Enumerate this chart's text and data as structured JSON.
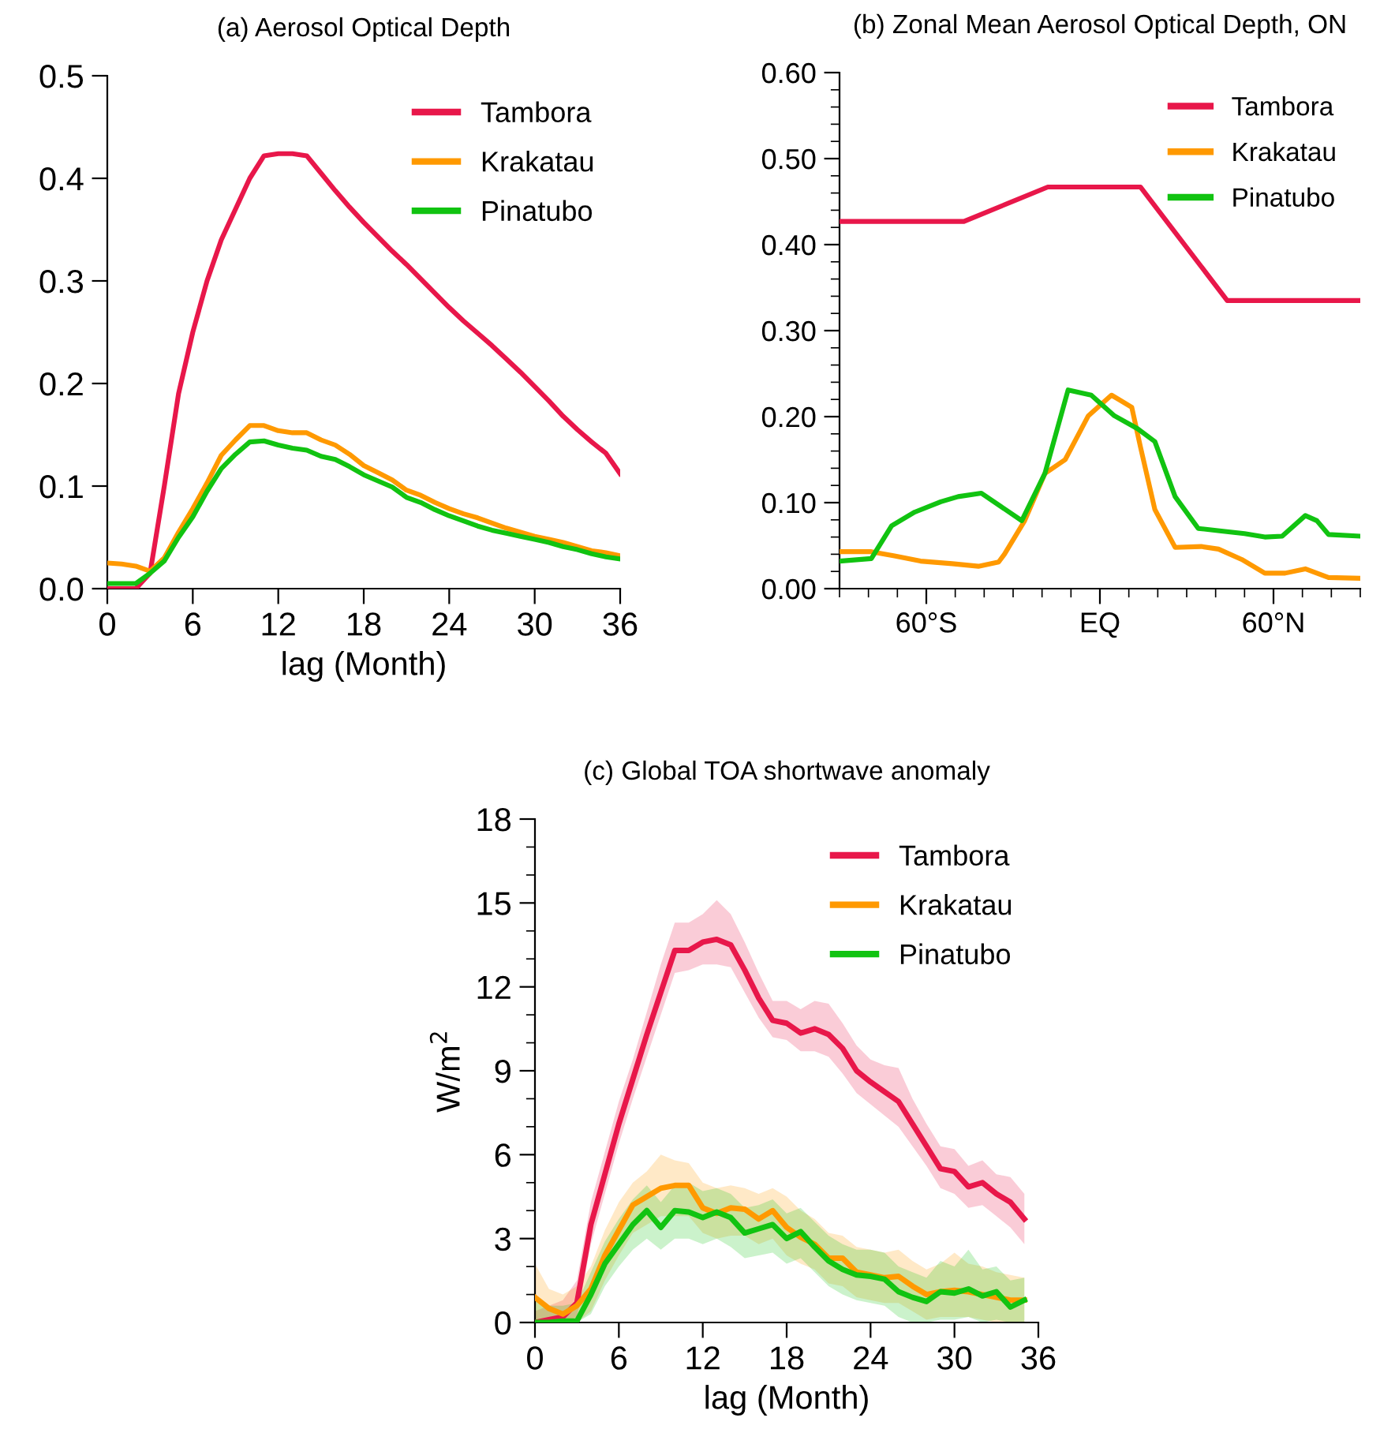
{
  "chart_data": [
    {
      "type": "line",
      "title": "(a) Aerosol Optical Depth",
      "xlabel": "lag (Month)",
      "x": [
        0,
        1,
        2,
        3,
        4,
        5,
        6,
        7,
        8,
        9,
        10,
        11,
        12,
        13,
        14,
        15,
        16,
        17,
        18,
        19,
        20,
        21,
        22,
        23,
        24,
        25,
        26,
        27,
        28,
        29,
        30,
        31,
        32,
        33,
        34,
        35,
        36
      ],
      "series": [
        {
          "name": "Tambora",
          "color": "#e8174a",
          "values": [
            0,
            0,
            0,
            0.015,
            0.1,
            0.19,
            0.25,
            0.3,
            0.34,
            0.37,
            0.4,
            0.422,
            0.424,
            0.424,
            0.422,
            0.405,
            0.388,
            0.372,
            0.357,
            0.343,
            0.329,
            0.316,
            0.302,
            0.288,
            0.274,
            0.261,
            0.249,
            0.237,
            0.224,
            0.211,
            0.197,
            0.183,
            0.168,
            0.155,
            0.143,
            0.132,
            0.112
          ]
        },
        {
          "name": "Krakatau",
          "color": "#ff9900",
          "values": [
            0.025,
            0.024,
            0.022,
            0.017,
            0.03,
            0.055,
            0.078,
            0.103,
            0.13,
            0.145,
            0.159,
            0.159,
            0.154,
            0.152,
            0.152,
            0.145,
            0.14,
            0.131,
            0.12,
            0.113,
            0.106,
            0.096,
            0.091,
            0.084,
            0.078,
            0.073,
            0.069,
            0.064,
            0.059,
            0.055,
            0.051,
            0.048,
            0.045,
            0.041,
            0.037,
            0.035,
            0.032
          ]
        },
        {
          "name": "Pinatubo",
          "color": "#11c311",
          "values": [
            0.005,
            0.005,
            0.005,
            0.015,
            0.027,
            0.05,
            0.07,
            0.095,
            0.117,
            0.131,
            0.143,
            0.144,
            0.14,
            0.137,
            0.135,
            0.129,
            0.126,
            0.119,
            0.111,
            0.105,
            0.099,
            0.089,
            0.084,
            0.077,
            0.071,
            0.066,
            0.061,
            0.057,
            0.054,
            0.051,
            0.048,
            0.045,
            0.041,
            0.038,
            0.034,
            0.031,
            0.029
          ]
        }
      ],
      "xlim": [
        0,
        36
      ],
      "xticks": [
        0,
        6,
        12,
        18,
        24,
        30,
        36
      ],
      "ylim": [
        0,
        0.5
      ],
      "yticks": [
        {
          "value": 0,
          "label": "0.0"
        },
        0.1,
        0.2,
        0.3,
        0.4,
        0.5
      ],
      "grid": false,
      "legend": "top right"
    },
    {
      "type": "line",
      "title": "(b) Zonal Mean Aerosol Optical Depth, ON",
      "series": [
        {
          "name": "Tambora",
          "color": "#e8174a",
          "x": [
            -90,
            -47,
            -18,
            14,
            44,
            90
          ],
          "values": [
            0.427,
            0.427,
            0.467,
            0.467,
            0.335,
            0.335
          ]
        },
        {
          "name": "Krakatau",
          "color": "#ff9900",
          "x": [
            -90,
            -79,
            -71,
            -62,
            -51,
            -42,
            -35,
            -33,
            -26,
            -19,
            -12,
            -4,
            4,
            11,
            14,
            19,
            26,
            35,
            41,
            49,
            57,
            64,
            71,
            79,
            90
          ],
          "values": [
            0.043,
            0.043,
            0.038,
            0.032,
            0.029,
            0.026,
            0.031,
            0.04,
            0.079,
            0.134,
            0.15,
            0.201,
            0.225,
            0.211,
            0.165,
            0.092,
            0.048,
            0.049,
            0.046,
            0.034,
            0.018,
            0.018,
            0.023,
            0.013,
            0.012
          ]
        },
        {
          "name": "Pinatubo",
          "color": "#11c311",
          "x": [
            -90,
            -79,
            -72,
            -64,
            -55,
            -49,
            -41,
            -27,
            -19,
            -11,
            -3,
            5,
            13,
            19,
            26,
            34,
            42,
            50,
            57,
            63,
            71,
            75,
            79,
            90
          ],
          "values": [
            0.032,
            0.035,
            0.073,
            0.089,
            0.101,
            0.107,
            0.111,
            0.079,
            0.134,
            0.231,
            0.225,
            0.201,
            0.186,
            0.171,
            0.107,
            0.07,
            0.067,
            0.064,
            0.06,
            0.061,
            0.085,
            0.079,
            0.063,
            0.061
          ]
        }
      ],
      "xlim": [
        -90,
        90
      ],
      "xticks": [
        {
          "value": -90,
          "label": null
        },
        {
          "value": -80,
          "label": null
        },
        {
          "value": -70,
          "label": null
        },
        {
          "value": -60,
          "label": "60°S"
        },
        {
          "value": -50,
          "label": null
        },
        {
          "value": -40,
          "label": null
        },
        {
          "value": -30,
          "label": null
        },
        {
          "value": -20,
          "label": null
        },
        {
          "value": -10,
          "label": null
        },
        {
          "value": 0,
          "label": "EQ"
        },
        {
          "value": 10,
          "label": null
        },
        {
          "value": 20,
          "label": null
        },
        {
          "value": 30,
          "label": null
        },
        {
          "value": 40,
          "label": null
        },
        {
          "value": 50,
          "label": null
        },
        {
          "value": 60,
          "label": "60°N"
        },
        {
          "value": 70,
          "label": null
        },
        {
          "value": 80,
          "label": null
        },
        {
          "value": 90,
          "label": null
        }
      ],
      "ylim": [
        0,
        0.6
      ],
      "yticks": [
        {
          "value": 0,
          "label": "0.00"
        },
        {
          "value": 0.02,
          "label": null
        },
        {
          "value": 0.04,
          "label": null
        },
        {
          "value": 0.06,
          "label": null
        },
        {
          "value": 0.08,
          "label": null
        },
        {
          "value": 0.1,
          "label": "0.10"
        },
        {
          "value": 0.12,
          "label": null
        },
        {
          "value": 0.14,
          "label": null
        },
        {
          "value": 0.16,
          "label": null
        },
        {
          "value": 0.18,
          "label": null
        },
        {
          "value": 0.2,
          "label": "0.20"
        },
        {
          "value": 0.22,
          "label": null
        },
        {
          "value": 0.24,
          "label": null
        },
        {
          "value": 0.26,
          "label": null
        },
        {
          "value": 0.28,
          "label": null
        },
        {
          "value": 0.3,
          "label": "0.30"
        },
        {
          "value": 0.32,
          "label": null
        },
        {
          "value": 0.34,
          "label": null
        },
        {
          "value": 0.36,
          "label": null
        },
        {
          "value": 0.38,
          "label": null
        },
        {
          "value": 0.4,
          "label": "0.40"
        },
        {
          "value": 0.42,
          "label": null
        },
        {
          "value": 0.44,
          "label": null
        },
        {
          "value": 0.46,
          "label": null
        },
        {
          "value": 0.48,
          "label": null
        },
        {
          "value": 0.5,
          "label": "0.50"
        },
        {
          "value": 0.52,
          "label": null
        },
        {
          "value": 0.54,
          "label": null
        },
        {
          "value": 0.56,
          "label": null
        },
        {
          "value": 0.58,
          "label": null
        },
        {
          "value": 0.6,
          "label": "0.60"
        }
      ],
      "grid": false,
      "legend": "top right"
    },
    {
      "type": "line",
      "title": "(c) Global TOA shortwave anomaly",
      "xlabel": "lag (Month)",
      "ylabel": "W/m$^{2}$",
      "x": [
        0,
        1,
        2,
        3,
        4,
        5,
        6,
        7,
        8,
        9,
        10,
        11,
        12,
        13,
        14,
        15,
        16,
        17,
        18,
        19,
        20,
        21,
        22,
        23,
        24,
        25,
        26,
        27,
        28,
        29,
        30,
        31,
        32,
        33,
        34,
        35
      ],
      "series": [
        {
          "name": "Tambora",
          "color": "#e8174a",
          "values": [
            0,
            0.1,
            0.2,
            0.7,
            3.5,
            5.3,
            7.1,
            8.7,
            10.3,
            11.8,
            13.3,
            13.3,
            13.6,
            13.7,
            13.5,
            12.6,
            11.6,
            10.8,
            10.7,
            10.35,
            10.5,
            10.3,
            9.8,
            9.0,
            8.6,
            8.25,
            7.9,
            7.1,
            6.3,
            5.5,
            5.4,
            4.85,
            5.0,
            4.6,
            4.3,
            3.7
          ],
          "lower": [
            0,
            0,
            0,
            0.2,
            2.8,
            4.6,
            6.4,
            8.0,
            9.5,
            11.0,
            12.5,
            12.6,
            12.8,
            12.8,
            12.7,
            11.8,
            10.9,
            10.2,
            10.1,
            9.7,
            9.7,
            9.5,
            8.9,
            8.2,
            7.8,
            7.4,
            7.0,
            6.3,
            5.6,
            4.8,
            4.6,
            4.1,
            4.2,
            3.8,
            3.4,
            2.8
          ],
          "upper": [
            0.4,
            0.6,
            0.8,
            1.5,
            4.3,
            6.1,
            7.9,
            9.4,
            11.1,
            12.8,
            14.3,
            14.3,
            14.6,
            15.1,
            14.6,
            13.6,
            12.5,
            11.5,
            11.5,
            11.2,
            11.5,
            11.4,
            10.7,
            9.9,
            9.4,
            9.2,
            9.1,
            8.0,
            7.1,
            6.3,
            6.2,
            5.6,
            5.8,
            5.3,
            5.2,
            4.6
          ]
        },
        {
          "name": "Krakatau",
          "color": "#ff9900",
          "values": [
            0.9,
            0.5,
            0.3,
            0.6,
            1.2,
            2.4,
            3.3,
            4.2,
            4.5,
            4.8,
            4.9,
            4.9,
            4.1,
            3.9,
            4.1,
            4.05,
            3.7,
            4.0,
            3.4,
            3.05,
            2.8,
            2.3,
            2.3,
            1.8,
            1.7,
            1.6,
            1.65,
            1.3,
            1.0,
            1.1,
            1.15,
            1.1,
            1.0,
            0.9,
            0.8,
            0.8
          ],
          "lower": [
            0,
            0,
            0,
            0,
            0.4,
            1.5,
            2.4,
            3.2,
            3.5,
            3.8,
            3.8,
            3.8,
            3.2,
            3.0,
            3.1,
            3.1,
            2.8,
            3.0,
            2.4,
            2.1,
            1.9,
            1.4,
            1.3,
            0.9,
            0.8,
            0.7,
            0.7,
            0.4,
            0.1,
            0.2,
            0.2,
            0.2,
            0.1,
            0,
            0,
            0
          ],
          "upper": [
            2.1,
            1.2,
            1.0,
            1.3,
            2.0,
            3.3,
            4.3,
            5.0,
            5.4,
            6.0,
            5.8,
            5.7,
            5.0,
            4.8,
            4.9,
            4.8,
            4.6,
            4.8,
            4.5,
            4.0,
            3.7,
            3.2,
            3.1,
            2.7,
            2.6,
            2.5,
            2.6,
            2.2,
            1.9,
            2.1,
            2.5,
            2.1,
            2.0,
            1.8,
            1.7,
            1.6
          ]
        },
        {
          "name": "Pinatubo",
          "color": "#11c311",
          "values": [
            0,
            0,
            0.05,
            0.05,
            1.0,
            2.1,
            2.8,
            3.5,
            4.0,
            3.4,
            4.0,
            3.95,
            3.75,
            3.95,
            3.75,
            3.2,
            3.35,
            3.5,
            3.0,
            3.25,
            2.7,
            2.2,
            1.9,
            1.7,
            1.65,
            1.55,
            1.1,
            0.9,
            0.75,
            1.1,
            1.05,
            1.2,
            0.95,
            1.1,
            0.55,
            0.8
          ],
          "lower": [
            0,
            0,
            0,
            0,
            0.3,
            1.3,
            2.0,
            2.6,
            3.0,
            2.6,
            3.0,
            3.0,
            2.8,
            3.0,
            2.7,
            2.3,
            2.4,
            2.5,
            2.1,
            2.3,
            1.8,
            1.3,
            1.0,
            0.8,
            0.7,
            0.6,
            0.2,
            0,
            0,
            0.1,
            0.1,
            0.2,
            0,
            0.1,
            0,
            0
          ],
          "upper": [
            0.8,
            0.6,
            0.6,
            0.7,
            1.8,
            2.9,
            3.7,
            4.4,
            4.9,
            4.3,
            4.9,
            5.0,
            4.7,
            4.8,
            4.6,
            4.1,
            4.2,
            4.4,
            3.9,
            4.1,
            3.6,
            3.1,
            2.8,
            2.6,
            2.6,
            2.5,
            2.0,
            1.8,
            1.6,
            2.2,
            2.0,
            2.6,
            1.9,
            2.0,
            1.5,
            1.6
          ]
        }
      ],
      "xlim": [
        0,
        36
      ],
      "xticks": [
        0,
        6,
        12,
        18,
        24,
        30,
        36
      ],
      "ylim": [
        0,
        18
      ],
      "yticks": [
        0,
        {
          "value": 1,
          "label": null
        },
        {
          "value": 2,
          "label": null
        },
        3,
        {
          "value": 4,
          "label": null
        },
        {
          "value": 5,
          "label": null
        },
        6,
        {
          "value": 7,
          "label": null
        },
        {
          "value": 8,
          "label": null
        },
        9,
        {
          "value": 10,
          "label": null
        },
        {
          "value": 11,
          "label": null
        },
        12,
        {
          "value": 13,
          "label": null
        },
        {
          "value": 14,
          "label": null
        },
        15,
        {
          "value": 16,
          "label": null
        },
        {
          "value": 17,
          "label": null
        },
        18
      ],
      "grid": false,
      "legend": "top right"
    }
  ]
}
